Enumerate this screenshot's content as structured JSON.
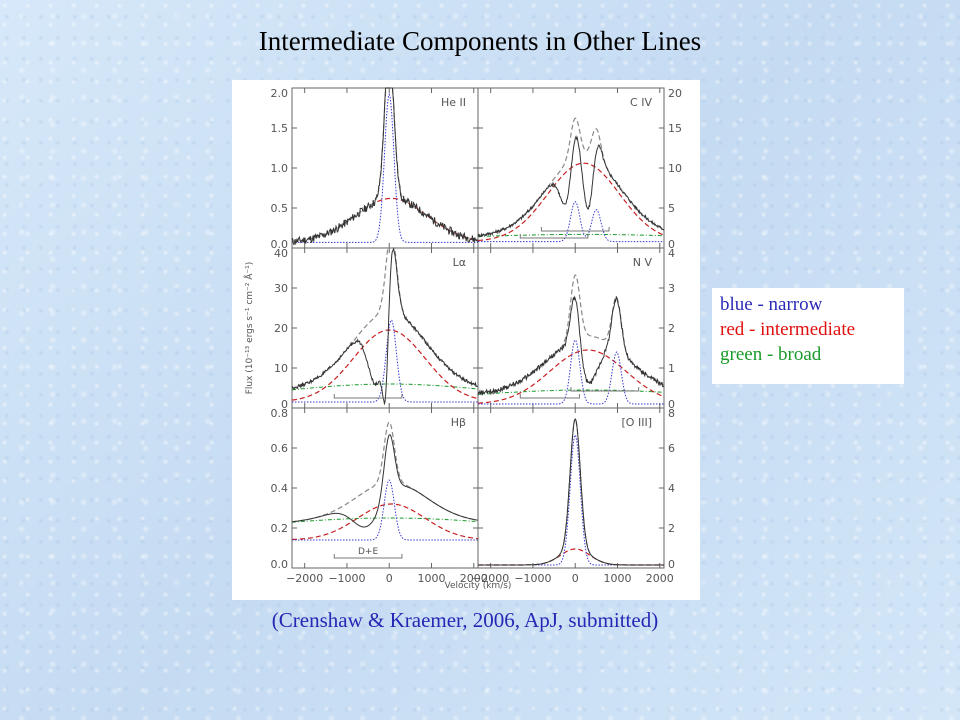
{
  "slide": {
    "title": "Intermediate Components in Other Lines",
    "citation": "(Crenshaw & Kraemer, 2006, ApJ, submitted)"
  },
  "legend": {
    "items": [
      {
        "color": "blue",
        "sep": " - ",
        "label": "narrow",
        "hex_color": "#2a2ab8",
        "hex_label": "#2a2ab8"
      },
      {
        "color": "red",
        "sep": " - ",
        "label": "intermediate",
        "hex_color": "#e01010",
        "hex_label": "#e01010"
      },
      {
        "color": "green",
        "sep": " - ",
        "label": "broad",
        "hex_color": "#1a9a2a",
        "hex_label": "#1a9a2a"
      }
    ]
  },
  "chart_data": {
    "type": "line",
    "xlabel": "Velocity (km/s)",
    "ylabel": "Flux (10⁻¹³ ergs s⁻¹ cm⁻² Å⁻¹)",
    "xlim": [
      -2300,
      2100
    ],
    "xticks": [
      -2000,
      -1000,
      0,
      1000,
      2000
    ],
    "xtick_labels": [
      "−2000",
      "−1000",
      "0",
      "1000",
      "2000"
    ],
    "panels": [
      {
        "name": "He II",
        "col": 0,
        "row": 0,
        "ylim": [
          0,
          2.0
        ],
        "yticks": [
          0,
          0.5,
          1.0,
          1.5,
          2.0
        ],
        "ytick_labels": [
          "0.0",
          "0.5",
          "1.0",
          "1.5",
          "2.0"
        ],
        "yside": "left",
        "continuum": 0.07,
        "narrow": {
          "center": 0,
          "amp": 1.85,
          "sigma": 110
        },
        "narrow2": null,
        "intermediate": {
          "center": 50,
          "amp": 0.55,
          "sigma": 850
        },
        "broad": null,
        "noise": 0.05,
        "bracket": null
      },
      {
        "name": "C IV",
        "col": 1,
        "row": 0,
        "ylim": [
          0,
          20
        ],
        "yticks": [
          0,
          5,
          10,
          15,
          20
        ],
        "ytick_labels": [
          "0",
          "5",
          "10",
          "15",
          "20"
        ],
        "yside": "right",
        "continuum": 0.8,
        "narrow": {
          "center": 0,
          "amp": 5.0,
          "sigma": 110
        },
        "narrow2": {
          "center": 500,
          "amp": 4.0,
          "sigma": 110
        },
        "intermediate": {
          "center": 200,
          "amp": 9.8,
          "sigma": 850
        },
        "broad": {
          "center": 200,
          "amp": 0.9,
          "sigma": 3000
        },
        "absorption": [
          {
            "center": -200,
            "depth": 5.5,
            "sigma": 150
          },
          {
            "center": 320,
            "depth": 7.5,
            "sigma": 130
          }
        ],
        "noise": 0.2,
        "bracket": [
          [
            -1300,
            300
          ],
          [
            -800,
            800
          ]
        ]
      },
      {
        "name": "Lα",
        "col": 0,
        "row": 1,
        "ylim": [
          0,
          40
        ],
        "yticks": [
          0,
          10,
          20,
          30,
          40
        ],
        "ytick_labels": [
          "0",
          "10",
          "20",
          "30",
          "40"
        ],
        "yside": "left",
        "continuum": 1.5,
        "narrow": {
          "center": 50,
          "amp": 20.5,
          "sigma": 120
        },
        "narrow2": null,
        "intermediate": {
          "center": 0,
          "amp": 18.0,
          "sigma": 850
        },
        "broad": {
          "center": 0,
          "amp": 4.5,
          "sigma": 2600
        },
        "absorption": [
          {
            "center": -300,
            "depth": 17,
            "sigma": 200
          },
          {
            "center": -80,
            "depth": 22,
            "sigma": 70
          }
        ],
        "noise": 0.4,
        "bracket": [
          [
            -1300,
            300
          ]
        ]
      },
      {
        "name": "N V",
        "col": 1,
        "row": 1,
        "ylim": [
          0,
          4
        ],
        "yticks": [
          0,
          1,
          2,
          3,
          4
        ],
        "ytick_labels": [
          "0",
          "1",
          "2",
          "3",
          "4"
        ],
        "yside": "right",
        "continuum": 0.1,
        "narrow": {
          "center": 0,
          "amp": 1.6,
          "sigma": 110
        },
        "narrow2": {
          "center": 980,
          "amp": 1.3,
          "sigma": 110
        },
        "intermediate": {
          "center": 300,
          "amp": 1.35,
          "sigma": 900
        },
        "broad": {
          "center": 300,
          "amp": 0.35,
          "sigma": 3000
        },
        "absorption": [
          {
            "center": 300,
            "depth": 1.2,
            "sigma": 250
          }
        ],
        "noise": 0.06,
        "bracket": [
          [
            -1300,
            100
          ],
          [
            -100,
            1500
          ]
        ]
      },
      {
        "name": "Hβ",
        "col": 0,
        "row": 2,
        "ylim": [
          0,
          0.8
        ],
        "yticks": [
          0,
          0.2,
          0.4,
          0.6,
          0.8
        ],
        "ytick_labels": [
          "0.0",
          "0.2",
          "0.4",
          "0.6",
          "0.8"
        ],
        "yside": "left",
        "continuum": 0.14,
        "narrow": {
          "center": 0,
          "amp": 0.3,
          "sigma": 120
        },
        "narrow2": null,
        "intermediate": {
          "center": 50,
          "amp": 0.18,
          "sigma": 800
        },
        "broad": {
          "center": 0,
          "amp": 0.11,
          "sigma": 3500
        },
        "absorption": [
          {
            "center": -500,
            "depth": 0.18,
            "sigma": 350
          }
        ],
        "noise": 0.0,
        "bracket": [
          [
            -1300,
            300
          ]
        ],
        "bracket_label": "D+E"
      },
      {
        "name": "[O III]",
        "col": 1,
        "row": 2,
        "ylim": [
          0,
          8
        ],
        "yticks": [
          0,
          2,
          4,
          6,
          8
        ],
        "ytick_labels": [
          "0",
          "2",
          "4",
          "6",
          "8"
        ],
        "yside": "right",
        "continuum": 0.15,
        "narrow": {
          "center": 0,
          "amp": 6.5,
          "sigma": 120
        },
        "narrow2": null,
        "intermediate": {
          "center": 0,
          "amp": 0.8,
          "sigma": 350
        },
        "broad": null,
        "noise": 0.0,
        "bracket": null
      }
    ]
  }
}
